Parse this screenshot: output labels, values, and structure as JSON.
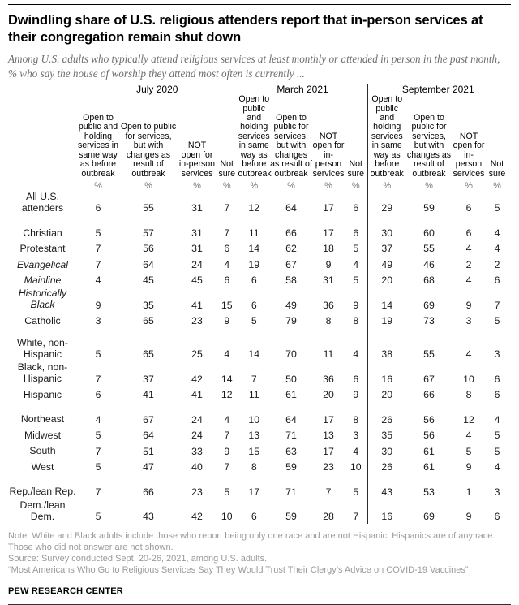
{
  "header": {
    "title": "Dwindling share of U.S. religious attenders report that in-person services at their congregation remain shut down",
    "subtitle": "Among U.S. adults who typically attend religious services at least monthly or attended in person in the past month, % who say the house of worship they attend most often is currently ..."
  },
  "chart_data": {
    "type": "table",
    "title": "Dwindling share of U.S. religious attenders report that in-person services at their congregation remain shut down",
    "periods": [
      "July 2020",
      "March 2021",
      "September 2021"
    ],
    "column_headers": [
      "Open to public and holding services in same way as before outbreak",
      "Open to public for services, but with changes as result of outbreak",
      "NOT open for in-person services",
      "Not sure"
    ],
    "unit": "%",
    "rows": [
      {
        "label": "All U.S. attenders",
        "indent": 0,
        "gap_before": false,
        "values": [
          6,
          55,
          31,
          7,
          12,
          64,
          17,
          6,
          29,
          59,
          6,
          5
        ]
      },
      {
        "label": "Christian",
        "indent": 0,
        "gap_before": true,
        "values": [
          5,
          57,
          31,
          7,
          11,
          66,
          17,
          6,
          30,
          60,
          6,
          4
        ]
      },
      {
        "label": "Protestant",
        "indent": 1,
        "gap_before": false,
        "values": [
          7,
          56,
          31,
          6,
          14,
          62,
          18,
          5,
          37,
          55,
          4,
          4
        ]
      },
      {
        "label": "Evangelical",
        "indent": 2,
        "gap_before": false,
        "values": [
          7,
          64,
          24,
          4,
          19,
          67,
          9,
          4,
          49,
          46,
          2,
          2
        ]
      },
      {
        "label": "Mainline",
        "indent": 2,
        "gap_before": false,
        "values": [
          4,
          45,
          45,
          6,
          6,
          58,
          31,
          5,
          20,
          68,
          4,
          6
        ]
      },
      {
        "label": "Historically Black",
        "indent": 2,
        "gap_before": false,
        "values": [
          9,
          35,
          41,
          15,
          6,
          49,
          36,
          9,
          14,
          69,
          9,
          7
        ]
      },
      {
        "label": "Catholic",
        "indent": 1,
        "gap_before": false,
        "values": [
          3,
          65,
          23,
          9,
          5,
          79,
          8,
          8,
          19,
          73,
          3,
          5
        ]
      },
      {
        "label": "White, non-Hispanic",
        "indent": 0,
        "gap_before": true,
        "values": [
          5,
          65,
          25,
          4,
          14,
          70,
          11,
          4,
          38,
          55,
          4,
          3
        ]
      },
      {
        "label": "Black, non-Hispanic",
        "indent": 0,
        "gap_before": false,
        "values": [
          7,
          37,
          42,
          14,
          7,
          50,
          36,
          6,
          16,
          67,
          10,
          6
        ]
      },
      {
        "label": "Hispanic",
        "indent": 0,
        "gap_before": false,
        "values": [
          6,
          41,
          41,
          12,
          11,
          61,
          20,
          9,
          20,
          66,
          8,
          6
        ]
      },
      {
        "label": "Northeast",
        "indent": 0,
        "gap_before": true,
        "values": [
          4,
          67,
          24,
          4,
          10,
          64,
          17,
          8,
          26,
          56,
          12,
          4
        ]
      },
      {
        "label": "Midwest",
        "indent": 0,
        "gap_before": false,
        "values": [
          5,
          64,
          24,
          7,
          13,
          71,
          13,
          3,
          35,
          56,
          4,
          5
        ]
      },
      {
        "label": "South",
        "indent": 0,
        "gap_before": false,
        "values": [
          7,
          51,
          33,
          9,
          15,
          63,
          17,
          4,
          30,
          61,
          5,
          5
        ]
      },
      {
        "label": "West",
        "indent": 0,
        "gap_before": false,
        "values": [
          5,
          47,
          40,
          7,
          8,
          59,
          23,
          10,
          26,
          61,
          9,
          4
        ]
      },
      {
        "label": "Rep./lean Rep.",
        "indent": 0,
        "gap_before": true,
        "values": [
          7,
          66,
          23,
          5,
          17,
          71,
          7,
          5,
          43,
          53,
          1,
          3
        ]
      },
      {
        "label": "Dem./lean Dem.",
        "indent": 0,
        "gap_before": false,
        "values": [
          5,
          43,
          42,
          10,
          6,
          59,
          28,
          7,
          16,
          69,
          9,
          6
        ]
      }
    ]
  },
  "footer": {
    "note": "Note: White and Black adults include those who report being only one race and are not Hispanic. Hispanics are of any race. Those who did not answer are not shown.",
    "source": "Source: Survey conducted Sept. 20-26, 2021, among U.S. adults.",
    "report_title": "“Most Americans Who Go to Religious Services Say They Would Trust Their Clergy’s Advice on COVID-19 Vaccines”",
    "brand": "PEW RESEARCH CENTER"
  },
  "colors": {
    "text": "#1a1a1a",
    "note_gray": "#9a9a9a",
    "subtitle_gray": "#6e6e6e",
    "rule_black": "#000000"
  }
}
